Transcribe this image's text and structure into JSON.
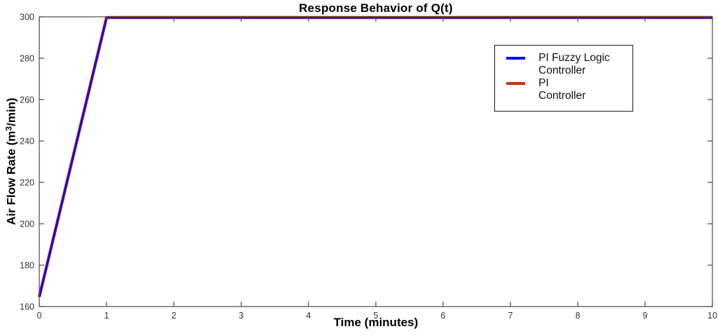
{
  "figure": {
    "title": "Response Behavior of Q(t)",
    "xlabel": "Time (minutes)",
    "ylabel_prefix": "Air Flow Rate (m",
    "ylabel_sup": "3",
    "ylabel_suffix": "/min)"
  },
  "legend": {
    "position": "upper right",
    "entries": [
      {
        "line1": "PI Fuzzy Logic",
        "line2": "Controller",
        "color": "#0B0BEA"
      },
      {
        "line1": "PI",
        "line2": "Controller",
        "color": "#CE2F10"
      }
    ]
  },
  "chart_data": {
    "type": "line",
    "title": "Response Behavior of Q(t)",
    "xlabel": "Time (minutes)",
    "ylabel": "Air Flow Rate (m^3/min)",
    "xlim": [
      0,
      10
    ],
    "ylim": [
      160,
      300
    ],
    "xticks": [
      0,
      1,
      2,
      3,
      4,
      5,
      6,
      7,
      8,
      9,
      10
    ],
    "yticks": [
      160,
      180,
      200,
      220,
      240,
      260,
      280,
      300
    ],
    "grid": false,
    "legend_position": "upper right",
    "axis_color": "#4a4a4a",
    "tick_label_color": "#333333",
    "series": [
      {
        "name": "PI Controller",
        "color": "#CE2F10",
        "line_width": 4.4,
        "points": [
          [
            0,
            165
          ],
          [
            1,
            300
          ],
          [
            10,
            300
          ]
        ]
      },
      {
        "name": "PI Fuzzy Logic Controller",
        "color": "#0B0BEA",
        "line_width": 2.6,
        "points": [
          [
            0,
            165
          ],
          [
            1,
            300
          ],
          [
            10,
            300
          ]
        ]
      }
    ]
  }
}
